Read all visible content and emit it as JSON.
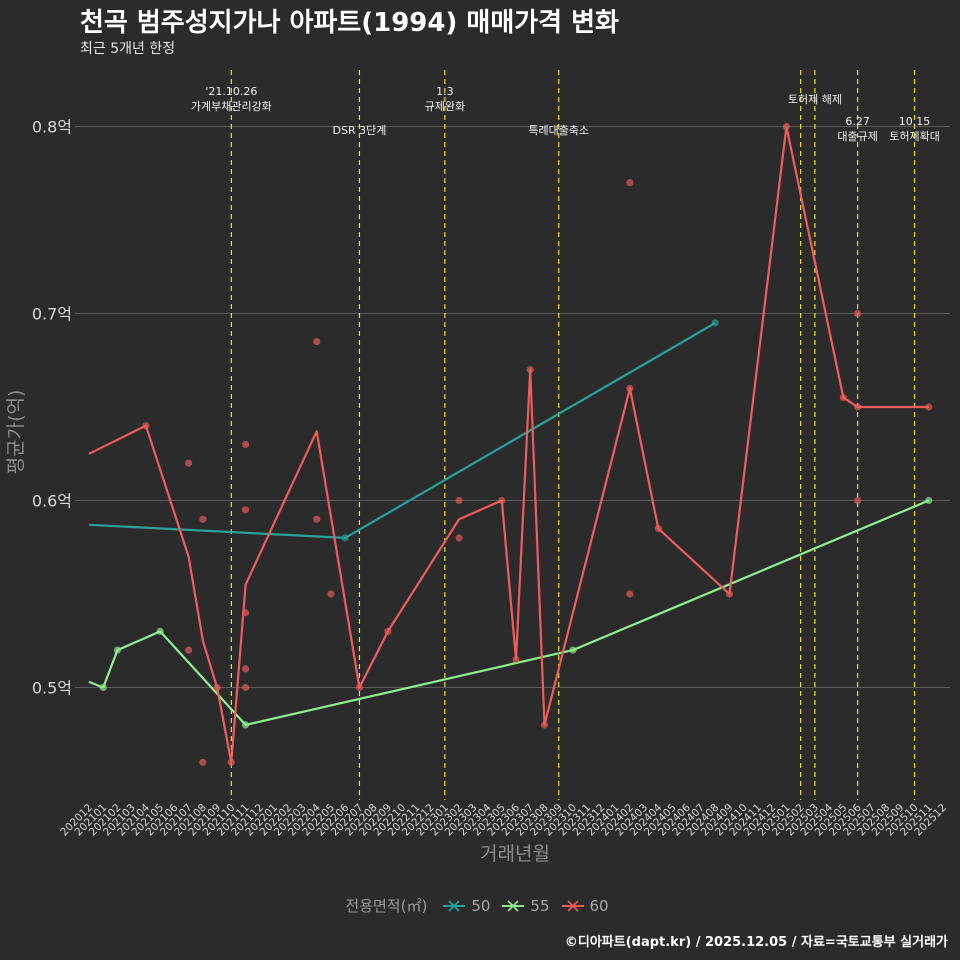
{
  "header": {
    "title": "천곡 범주성지가나 아파트(1994) 매매가격 변화",
    "subtitle": "최근 5개년 한정"
  },
  "caption": "©디아파트(dapt.kr) / 2025.12.05 / 자료=국토교통부 실거래가",
  "legend": {
    "title": "전용면적(㎡)",
    "items": [
      {
        "label": "50",
        "color": "#2aa198"
      },
      {
        "label": "55",
        "color": "#90ee90"
      },
      {
        "label": "60",
        "color": "#ee5c5c"
      }
    ]
  },
  "chart_data": {
    "type": "line",
    "title": "천곡 범주성지가나 아파트(1994) 매매가격 변화",
    "xlabel": "거래년월",
    "ylabel": "평균가(억)",
    "ylim": [
      0.44,
      0.83
    ],
    "yticks": [
      0.5,
      0.6,
      0.7,
      0.8
    ],
    "ytick_labels": [
      "0.5억",
      "0.6억",
      "0.7억",
      "0.8억"
    ],
    "categories": [
      "202012",
      "202101",
      "202102",
      "202103",
      "202104",
      "202105",
      "202106",
      "202107",
      "202108",
      "202109",
      "202110",
      "202111",
      "202112",
      "202201",
      "202202",
      "202203",
      "202204",
      "202205",
      "202206",
      "202207",
      "202208",
      "202209",
      "202210",
      "202211",
      "202212",
      "202301",
      "202302",
      "202303",
      "202304",
      "202305",
      "202306",
      "202307",
      "202308",
      "202309",
      "202310",
      "202311",
      "202312",
      "202401",
      "202402",
      "202403",
      "202404",
      "202405",
      "202406",
      "202407",
      "202408",
      "202409",
      "202410",
      "202411",
      "202412",
      "202501",
      "202502",
      "202503",
      "202504",
      "202505",
      "202506",
      "202507",
      "202508",
      "202509",
      "202510",
      "202511",
      "202512"
    ],
    "series": [
      {
        "name": "50",
        "color": "#2aa198",
        "line": [
          [
            "202012",
            0.587
          ],
          [
            "202206",
            0.58
          ],
          [
            "202408",
            0.695
          ]
        ],
        "points": [
          [
            "202206",
            0.58
          ],
          [
            "202408",
            0.695
          ]
        ]
      },
      {
        "name": "55",
        "color": "#90ee90",
        "line": [
          [
            "202012",
            0.503
          ],
          [
            "202101",
            0.5
          ],
          [
            "202102",
            0.52
          ],
          [
            "202105",
            0.53
          ],
          [
            "202111",
            0.48
          ],
          [
            "202310",
            0.52
          ],
          [
            "202511",
            0.6
          ]
        ],
        "points": [
          [
            "202101",
            0.5
          ],
          [
            "202102",
            0.52
          ],
          [
            "202105",
            0.53
          ],
          [
            "202111",
            0.48
          ],
          [
            "202310",
            0.52
          ],
          [
            "202511",
            0.6
          ]
        ]
      },
      {
        "name": "60",
        "color": "#ee5c5c",
        "line": [
          [
            "202012",
            0.625
          ],
          [
            "202104",
            0.64
          ],
          [
            "202107",
            0.57
          ],
          [
            "202108",
            0.525
          ],
          [
            "202109",
            0.5
          ],
          [
            "202110",
            0.46
          ],
          [
            "202111",
            0.555
          ],
          [
            "202204",
            0.637
          ],
          [
            "202207",
            0.5
          ],
          [
            "202209",
            0.53
          ],
          [
            "202302",
            0.59
          ],
          [
            "202305",
            0.6
          ],
          [
            "202306",
            0.515
          ],
          [
            "202307",
            0.67
          ],
          [
            "202308",
            0.48
          ],
          [
            "202402",
            0.66
          ],
          [
            "202404",
            0.585
          ],
          [
            "202409",
            0.55
          ],
          [
            "202501",
            0.8
          ],
          [
            "202505",
            0.655
          ],
          [
            "202506",
            0.65
          ],
          [
            "202511",
            0.65
          ]
        ],
        "points": [
          [
            "202104",
            0.64
          ],
          [
            "202107",
            0.62
          ],
          [
            "202107",
            0.52
          ],
          [
            "202108",
            0.59
          ],
          [
            "202108",
            0.46
          ],
          [
            "202109",
            0.5
          ],
          [
            "202110",
            0.46
          ],
          [
            "202111",
            0.63
          ],
          [
            "202111",
            0.595
          ],
          [
            "202111",
            0.54
          ],
          [
            "202111",
            0.51
          ],
          [
            "202111",
            0.5
          ],
          [
            "202204",
            0.685
          ],
          [
            "202204",
            0.59
          ],
          [
            "202205",
            0.55
          ],
          [
            "202207",
            0.5
          ],
          [
            "202209",
            0.53
          ],
          [
            "202302",
            0.6
          ],
          [
            "202302",
            0.58
          ],
          [
            "202305",
            0.6
          ],
          [
            "202306",
            0.515
          ],
          [
            "202307",
            0.67
          ],
          [
            "202308",
            0.48
          ],
          [
            "202402",
            0.77
          ],
          [
            "202402",
            0.66
          ],
          [
            "202402",
            0.55
          ],
          [
            "202404",
            0.585
          ],
          [
            "202409",
            0.55
          ],
          [
            "202501",
            0.8
          ],
          [
            "202505",
            0.655
          ],
          [
            "202506",
            0.7
          ],
          [
            "202506",
            0.65
          ],
          [
            "202506",
            0.6
          ],
          [
            "202511",
            0.65
          ]
        ]
      }
    ],
    "annotations": [
      {
        "x": "202110",
        "lines": [
          "'21.10.26",
          "가계부채관리강화"
        ],
        "level": "top"
      },
      {
        "x": "202207",
        "lines": [
          "DSR 3단계"
        ],
        "level": "low"
      },
      {
        "x": "202301",
        "lines": [
          "1.3",
          "규제완화"
        ],
        "level": "top"
      },
      {
        "x": "202309",
        "lines": [
          "특례대출축소"
        ],
        "level": "low"
      },
      {
        "x": "202502",
        "lines": [],
        "level": "none"
      },
      {
        "x": "202503",
        "lines": [
          "토허제 해제"
        ],
        "level": "mid"
      },
      {
        "x": "202506",
        "lines": [
          "6.27",
          "대출규제"
        ],
        "level": "low2"
      },
      {
        "x": "202510",
        "lines": [
          "10.15",
          "토허제확대"
        ],
        "level": "low2"
      }
    ]
  }
}
